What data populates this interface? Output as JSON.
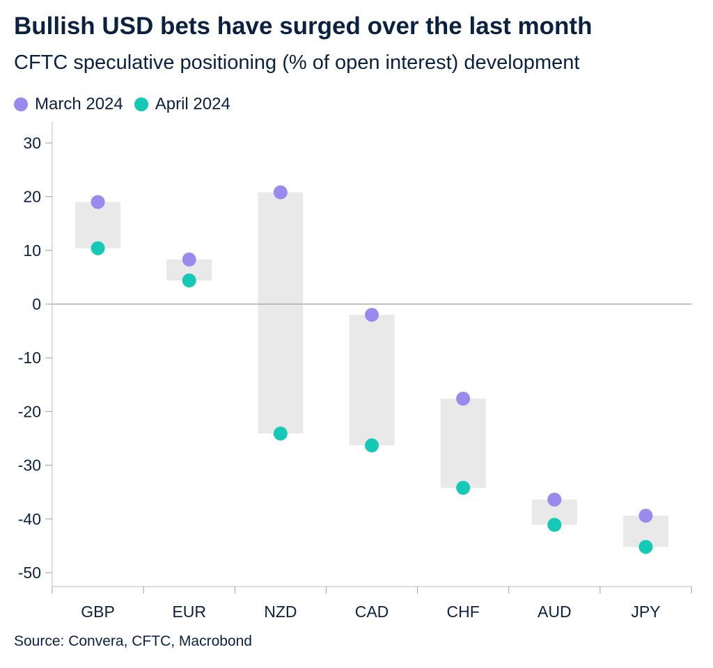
{
  "chart_data": {
    "type": "scatter",
    "title": "Bullish USD bets have surged over the last month",
    "subtitle": "CFTC speculative positioning (% of open interest) development",
    "source": "Source: Convera, CFTC, Macrobond",
    "categories": [
      "GBP",
      "EUR",
      "NZD",
      "CAD",
      "CHF",
      "AUD",
      "JPY"
    ],
    "series": [
      {
        "name": "March 2024",
        "color": "#9b8aee",
        "values": [
          19.0,
          8.3,
          20.8,
          -2.0,
          -17.6,
          -36.4,
          -39.4
        ]
      },
      {
        "name": "April 2024",
        "color": "#14c9b5",
        "values": [
          10.4,
          4.4,
          -24.1,
          -26.3,
          -34.2,
          -41.1,
          -45.2
        ]
      }
    ],
    "yticks": [
      30,
      20,
      10,
      0,
      -10,
      -20,
      -30,
      -40,
      -50
    ],
    "ylim": [
      -53,
      30
    ],
    "range_bar_color": "#e9e9e9",
    "legend_position": "top-left",
    "grid": false
  }
}
